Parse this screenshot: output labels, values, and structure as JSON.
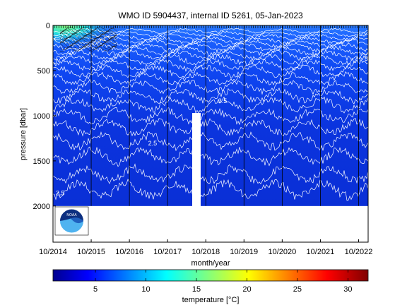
{
  "chart_data": {
    "type": "heatmap",
    "title": "WMO ID 5904437, internal ID 5261, 05-Jan-2023",
    "xlabel": "month/year",
    "ylabel": "pressure [dbar]",
    "x_tick_labels": [
      "10/2014",
      "10/2015",
      "10/2016",
      "10/2017",
      "10/2018",
      "10/2019",
      "10/2020",
      "10/2021",
      "10/2022"
    ],
    "x_range": [
      "2014-10",
      "2023-01"
    ],
    "y_ticks": [
      0,
      500,
      1000,
      1500,
      2000
    ],
    "y_range": [
      0,
      2400
    ],
    "y_reversed": true,
    "max_profile_pressure": 2000,
    "colorbar": {
      "label": "temperature [°C]",
      "ticks": [
        5,
        10,
        15,
        20,
        25,
        30
      ],
      "range": [
        0.8,
        32
      ],
      "colormap": "jet"
    },
    "temperature_profile": [
      {
        "pressure": 0,
        "temperature": 12
      },
      {
        "pressure": 100,
        "temperature": 8
      },
      {
        "pressure": 400,
        "temperature": 6
      },
      {
        "pressure": 800,
        "temperature": 4.5
      },
      {
        "pressure": 1200,
        "temperature": 3.5
      },
      {
        "pressure": 1600,
        "temperature": 2.8
      },
      {
        "pressure": 2000,
        "temperature": 2.5
      }
    ],
    "contour_labels": [
      {
        "text": "2.5",
        "date": "2014-10",
        "pressure": 1880
      },
      {
        "text": "2.5",
        "date": "2017-03",
        "pressure": 1330
      },
      {
        "text": "3.5",
        "date": "2019-01",
        "pressure": 860
      },
      {
        "text": "5.5",
        "date": "2022-11",
        "pressure": 390
      }
    ],
    "grid": false,
    "logo": "NOAA"
  }
}
